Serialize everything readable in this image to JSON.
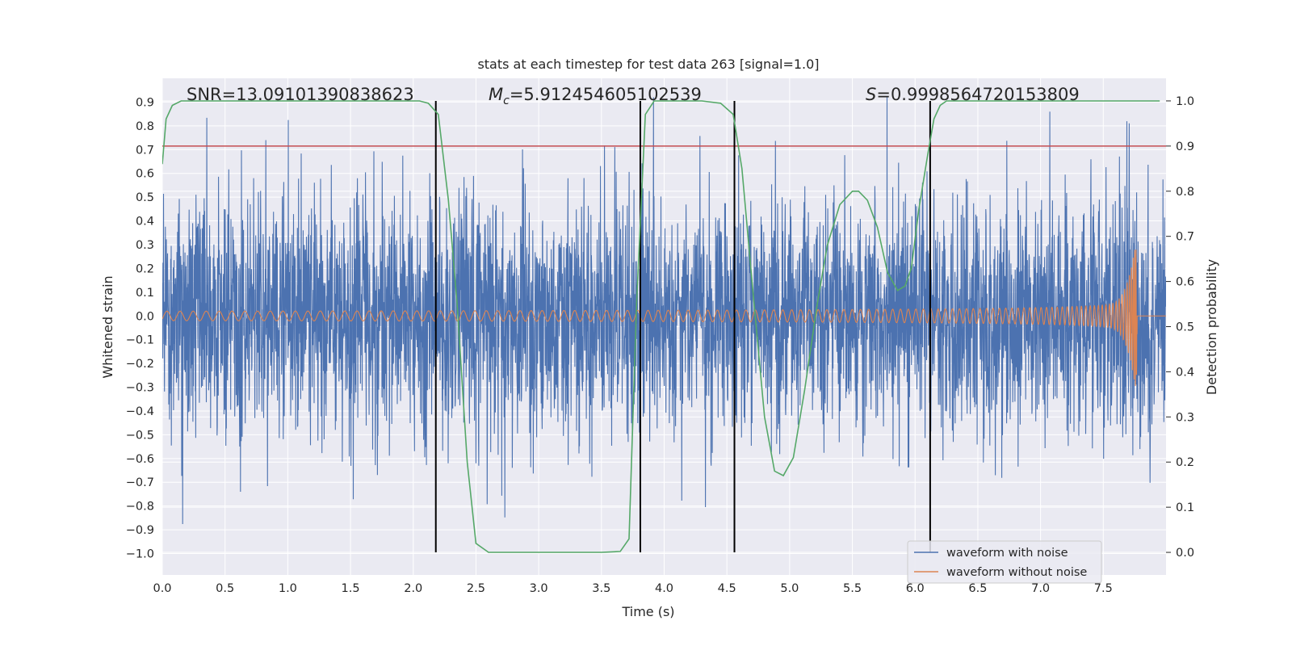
{
  "chart_data": {
    "type": "line",
    "title": "stats at each timestep for test data 263 [signal=1.0]",
    "xlabel": "Time (s)",
    "ylabel": "Whitened strain",
    "y2label": "Detection probability",
    "xlim": [
      0.0,
      8.0
    ],
    "ylim": [
      -1.09,
      1.0
    ],
    "y2lim": [
      -0.05,
      1.05
    ],
    "xticks": [
      "0.0",
      "0.5",
      "1.0",
      "1.5",
      "2.0",
      "2.5",
      "3.0",
      "3.5",
      "4.0",
      "4.5",
      "5.0",
      "5.5",
      "6.0",
      "6.5",
      "7.0",
      "7.5"
    ],
    "yticks": [
      "0.9",
      "0.8",
      "0.7",
      "0.6",
      "0.5",
      "0.4",
      "0.3",
      "0.2",
      "0.1",
      "0.0",
      "−0.1",
      "−0.2",
      "−0.3",
      "−0.4",
      "−0.5",
      "−0.6",
      "−0.7",
      "−0.8",
      "−0.9",
      "−1.0"
    ],
    "y2ticks": [
      "1.0",
      "0.9",
      "0.8",
      "0.7",
      "0.6",
      "0.5",
      "0.4",
      "0.3",
      "0.2",
      "0.1",
      "0.0"
    ],
    "annotations": {
      "snr": "SNR=13.09101390838623",
      "mc_symbol": "M",
      "mc_sub": "c",
      "mc_value": "=5.912454605102539",
      "s_symbol": "S",
      "s_value": "=0.9998564720153809"
    },
    "legend": {
      "position": "lower-right",
      "entries": [
        "waveform with noise",
        "waveform without noise"
      ]
    },
    "colors": {
      "noisy": "#4c72b0",
      "clean": "#dd8452",
      "probability": "#55a868",
      "threshold": "#c44e52",
      "markers": "#000000",
      "background": "#eaeaf2",
      "grid": "#ffffff"
    },
    "threshold_probability": 0.9,
    "vertical_markers_time": [
      2.18,
      3.81,
      4.56,
      6.12
    ],
    "series": [
      {
        "name": "waveform with noise",
        "axis": "left",
        "summary": "dense noise, typical envelope ±0.55, peaks up to ±0.9 / −1.0"
      },
      {
        "name": "waveform without noise",
        "axis": "left",
        "summary": "chirp, amplitude 0.02 at t=0 rising to 0.3 at merger t≈7.77 s, zero afterwards",
        "merger_time": 7.77,
        "peak_amplitude": 0.3
      },
      {
        "name": "detection probability",
        "axis": "right",
        "x": [
          0.0,
          0.03,
          0.08,
          0.15,
          0.25,
          0.5,
          1.0,
          1.5,
          1.9,
          2.05,
          2.12,
          2.2,
          2.28,
          2.35,
          2.43,
          2.5,
          2.6,
          3.0,
          3.5,
          3.65,
          3.72,
          3.78,
          3.85,
          3.92,
          4.0,
          4.1,
          4.3,
          4.45,
          4.55,
          4.62,
          4.7,
          4.8,
          4.88,
          4.95,
          5.03,
          5.12,
          5.22,
          5.3,
          5.4,
          5.5,
          5.55,
          5.62,
          5.7,
          5.78,
          5.86,
          5.92,
          5.97,
          6.03,
          6.1,
          6.15,
          6.2,
          6.25,
          6.3,
          6.4,
          7.0,
          7.5,
          7.95
        ],
        "values": [
          0.86,
          0.96,
          0.99,
          1.0,
          1.0,
          1.0,
          1.0,
          1.0,
          1.0,
          1.0,
          0.995,
          0.97,
          0.78,
          0.55,
          0.2,
          0.02,
          0.0,
          0.0,
          0.0,
          0.002,
          0.03,
          0.55,
          0.97,
          1.0,
          1.0,
          1.0,
          1.0,
          0.995,
          0.97,
          0.85,
          0.6,
          0.3,
          0.18,
          0.17,
          0.21,
          0.36,
          0.55,
          0.68,
          0.77,
          0.8,
          0.8,
          0.78,
          0.72,
          0.62,
          0.58,
          0.59,
          0.63,
          0.76,
          0.88,
          0.96,
          0.99,
          1.0,
          1.0,
          1.0,
          1.0,
          1.0,
          1.0
        ]
      }
    ]
  }
}
